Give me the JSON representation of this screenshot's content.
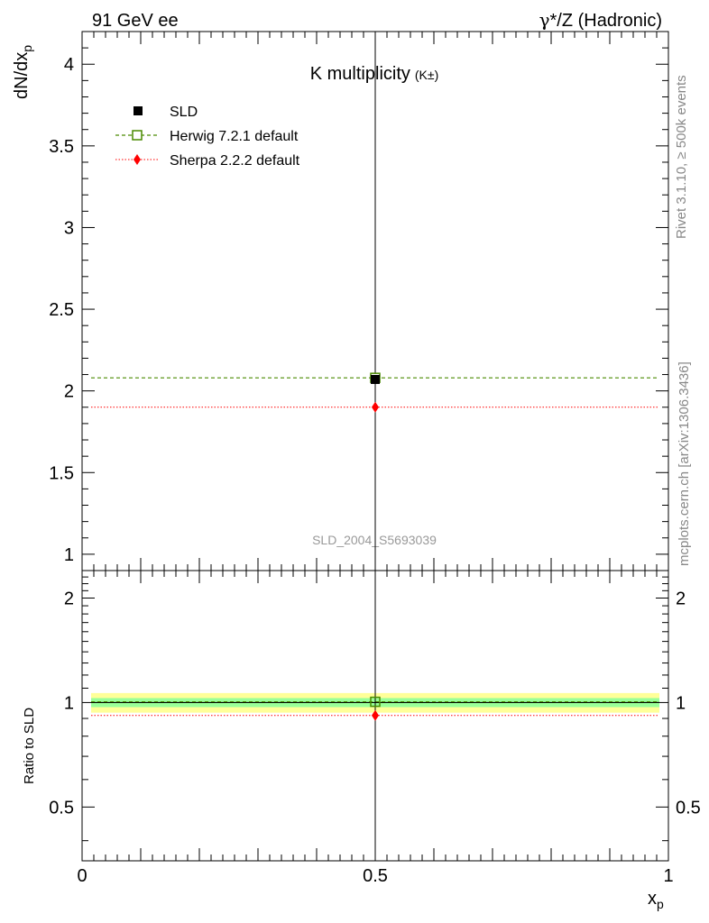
{
  "header": {
    "left": "91 GeV ee",
    "right_gamma": "γ",
    "right_rest": "*/Z (Hadronic)"
  },
  "side_text": {
    "rivet": "Rivet 3.1.10, ≥ 500k events",
    "mcplots": "mcplots.cern.ch [arXiv:1306.3436]"
  },
  "chart_data": [
    {
      "type": "scatter",
      "title": "K multiplicity",
      "title_suffix": "(K±)",
      "watermark": "SLD_2004_S5693039",
      "ylabel_main": "dN/dx",
      "ylabel_sub": "p",
      "ylim": [
        0.9,
        4.2
      ],
      "xlim": [
        0,
        1
      ],
      "yticks": [
        1,
        1.5,
        2,
        2.5,
        3,
        3.5,
        4
      ],
      "ytick_labels": [
        "1",
        "1.5",
        "2",
        "2.5",
        "3",
        "3.5",
        "4"
      ],
      "legend_placement": "top-left",
      "series": [
        {
          "name": "SLD",
          "x": [
            0.5
          ],
          "y": [
            2.07
          ],
          "color": "#000000",
          "marker": "filled-square"
        },
        {
          "name": "Herwig 7.2.1 default",
          "x": [
            0.5
          ],
          "y": [
            2.08
          ],
          "color": "#4a8a00",
          "marker": "open-square",
          "line": "dashed"
        },
        {
          "name": "Sherpa 2.2.2 default",
          "x": [
            0.5
          ],
          "y": [
            1.9
          ],
          "color": "#ff0000",
          "marker": "diamond",
          "line": "dotted"
        }
      ]
    },
    {
      "type": "scatter",
      "ylabel": "Ratio to SLD",
      "xlabel_main": "x",
      "xlabel_sub": "p",
      "log_y": true,
      "ylim": [
        0.35,
        2.4
      ],
      "xlim": [
        0,
        1
      ],
      "yticks": [
        0.5,
        1,
        2
      ],
      "ytick_labels": [
        "0.5",
        "1",
        "2"
      ],
      "xticks": [
        0,
        0.5,
        1
      ],
      "xtick_labels": [
        "0",
        "0.5",
        "1"
      ],
      "band_inner": [
        0.97,
        1.03
      ],
      "band_outer": [
        0.935,
        1.065
      ],
      "series": [
        {
          "name": "SLD",
          "x": [
            0.5
          ],
          "y": [
            1.0
          ],
          "color": "#000000"
        },
        {
          "name": "Herwig 7.2.1 default",
          "x": [
            0.5
          ],
          "y": [
            1.005
          ],
          "color": "#4a8a00",
          "marker": "open-square",
          "line": "dashed"
        },
        {
          "name": "Sherpa 2.2.2 default",
          "x": [
            0.5
          ],
          "y": [
            0.918
          ],
          "color": "#ff0000",
          "marker": "diamond",
          "line": "dotted"
        }
      ]
    }
  ]
}
